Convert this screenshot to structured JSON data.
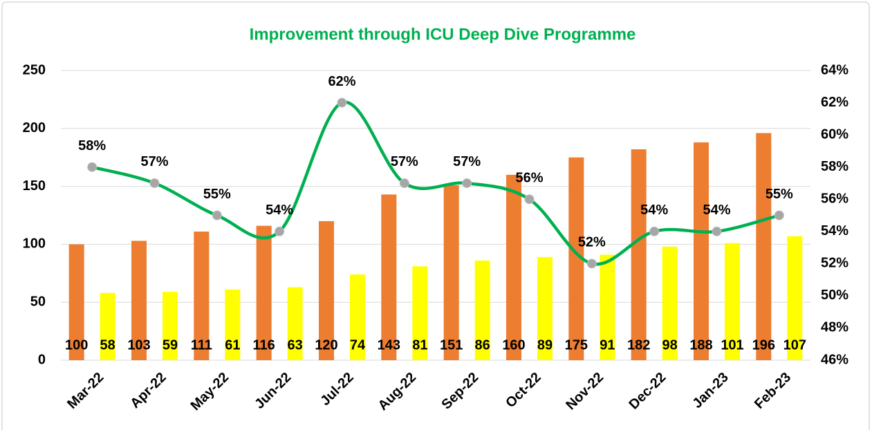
{
  "chart_data": {
    "type": "bar",
    "title": "Improvement through ICU Deep Dive Programme",
    "categories": [
      "Mar-22",
      "Apr-22",
      "May-22",
      "Jun-22",
      "Jul-22",
      "Aug-22",
      "Sep-22",
      "Oct-22",
      "Nov-22",
      "Dec-22",
      "Jan-23",
      "Feb-23"
    ],
    "series": [
      {
        "color": "#ed7d31",
        "values": [
          100,
          103,
          111,
          116,
          120,
          143,
          151,
          160,
          175,
          182,
          188,
          196
        ]
      },
      {
        "color": "#ffff00",
        "values": [
          58,
          59,
          61,
          63,
          74,
          81,
          86,
          89,
          91,
          98,
          101,
          107
        ]
      },
      {
        "type": "line",
        "axis": "y2",
        "color": "#00b050",
        "marker_color": "#a6a6a6",
        "values": [
          58,
          57,
          55,
          54,
          62,
          57,
          57,
          56,
          52,
          54,
          54,
          55
        ],
        "value_labels": [
          "58%",
          "57%",
          "55%",
          "54%",
          "62%",
          "57%",
          "57%",
          "56%",
          "52%",
          "54%",
          "54%",
          "55%"
        ]
      }
    ],
    "ylim": [
      0,
      250
    ],
    "yticks": [
      0,
      50,
      100,
      150,
      200,
      250
    ],
    "y2lim": [
      46,
      64
    ],
    "y2ticks": [
      {
        "value": 46,
        "label": "46%"
      },
      {
        "value": 48,
        "label": "48%"
      },
      {
        "value": 50,
        "label": "50%"
      },
      {
        "value": 52,
        "label": "52%"
      },
      {
        "value": 54,
        "label": "54%"
      },
      {
        "value": 56,
        "label": "56%"
      },
      {
        "value": 58,
        "label": "58%"
      },
      {
        "value": 60,
        "label": "60%"
      },
      {
        "value": 62,
        "label": "62%"
      },
      {
        "value": 64,
        "label": "64%"
      }
    ],
    "grid": true
  }
}
